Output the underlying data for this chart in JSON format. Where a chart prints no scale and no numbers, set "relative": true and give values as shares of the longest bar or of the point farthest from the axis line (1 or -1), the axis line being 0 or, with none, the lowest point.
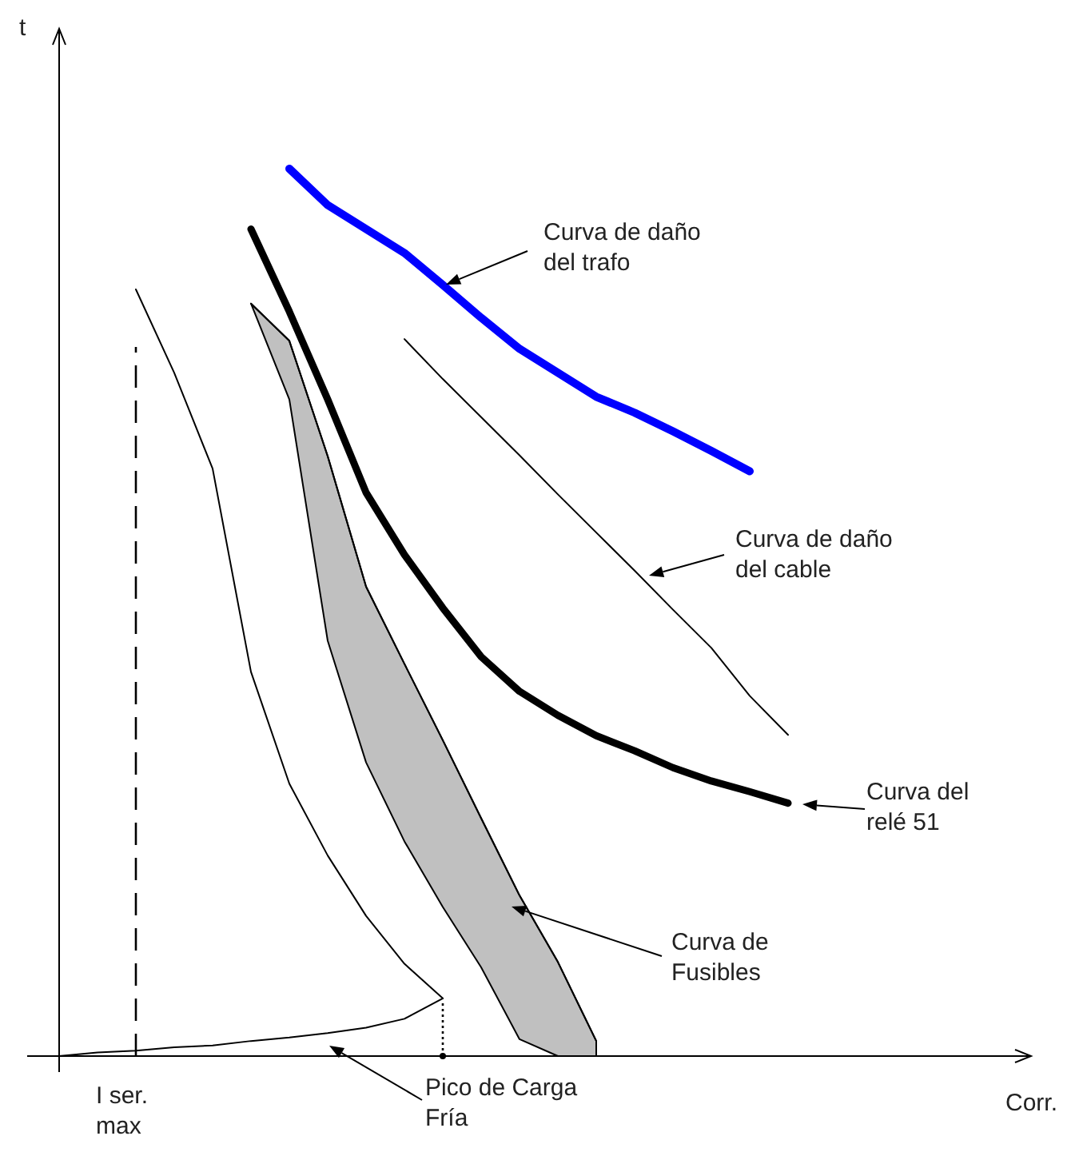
{
  "chart_data": {
    "type": "line",
    "relative": true,
    "xlabel": "Corr.",
    "categories": [
      null,
      null,
      null,
      null,
      null,
      null,
      null,
      null,
      null,
      null,
      null,
      null,
      null,
      null,
      null,
      null,
      null,
      null,
      null,
      null,
      null,
      null,
      null,
      null,
      null,
      null
    ],
    "series": [
      {
        "color": "#0000ff",
        "values": [
          null,
          null,
          null,
          null,
          null,
          null,
          1,
          0.959,
          0.932,
          0.905,
          0.869,
          0.832,
          0.797,
          0.77,
          0.743,
          0.725,
          0.704,
          0.682,
          0.659,
          null,
          null,
          null,
          null,
          null,
          null,
          null
        ]
      },
      {
        "color": "#000000",
        "values": [
          null,
          null,
          null,
          null,
          null,
          0.932,
          0.839,
          0.74,
          0.635,
          0.565,
          0.505,
          0.45,
          0.411,
          0.384,
          0.361,
          0.344,
          0.325,
          0.31,
          0.298,
          0.285,
          null,
          null,
          null,
          null,
          null,
          null
        ]
      },
      {
        "color": "#000000",
        "values": [
          null,
          null,
          null,
          null,
          null,
          null,
          null,
          null,
          null,
          0.808,
          0.763,
          0.72,
          0.677,
          0.633,
          0.59,
          0.547,
          0.503,
          0.46,
          0.406,
          0.362,
          null,
          null,
          null,
          null,
          null,
          null
        ]
      },
      {
        "color": "#000000",
        "values": [
          null,
          null,
          0.864,
          0.77,
          0.662,
          0.433,
          0.307,
          0.226,
          0.158,
          0.104,
          0.065,
          null,
          null,
          null,
          null,
          null,
          null,
          null,
          null,
          null,
          null,
          null,
          null,
          null,
          null,
          null
        ]
      },
      {
        "color": "#000000",
        "values": [
          0,
          0.004,
          0.006,
          0.01,
          0.012,
          0.017,
          0.021,
          0.026,
          0.032,
          0.042,
          0.065,
          null,
          null,
          null,
          null,
          null,
          null,
          null,
          null,
          null,
          null,
          null,
          null,
          null,
          null,
          null
        ]
      },
      {
        "color": "#000000",
        "values": [
          null,
          null,
          null,
          null,
          null,
          0.848,
          0.806,
          0.676,
          0.529,
          0.442,
          0.356,
          0.268,
          0.181,
          0.106,
          0.017,
          null,
          null,
          null,
          null,
          null,
          null,
          null,
          null,
          null,
          null,
          null
        ],
        "upper": [
          null,
          null,
          null,
          null,
          null,
          0.848,
          0.806,
          0.676,
          0.529,
          0.442,
          0.356,
          0.268,
          0.181,
          0.106,
          0.017,
          null,
          null,
          null,
          null,
          null,
          null,
          null,
          null,
          null,
          null,
          null
        ],
        "lower": [
          null,
          null,
          null,
          null,
          null,
          0.848,
          0.74,
          0.468,
          0.331,
          0.242,
          0.168,
          0.1,
          0.019,
          0,
          0,
          null,
          null,
          null,
          null,
          null,
          null,
          null,
          null,
          null,
          null,
          null
        ]
      }
    ],
    "annotations": [
      "Curva de daño\ndel trafo",
      "Curva de daño\ndel cable",
      "Curva del\nrelé 51",
      "Curva de\nFusibles",
      "I ser.\nmax",
      "Pico de Carga\nFría",
      "t"
    ]
  }
}
